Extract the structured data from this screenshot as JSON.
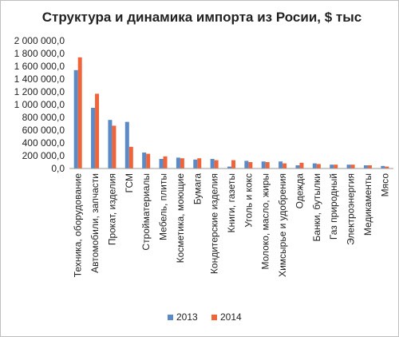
{
  "chart_data": {
    "type": "bar",
    "title": "Структура и динамика импорта из Росии, $ тыс",
    "categories": [
      "Техника, оборудование",
      "Автомобили, запчасти",
      "Прокат, изделия",
      "ГСМ",
      "Стройматериалы",
      "Мебель, плиты",
      "Косметика, моющие",
      "Бумага",
      "Кондитерские изделия",
      "Книги, газеты",
      "Уголь и кокс",
      "Молоко, масло, жиры",
      "Химсырье и удобрения",
      "Одежда",
      "Банки, бутылки",
      "Газ природный",
      "Электроэнергия",
      "Медикаменты",
      "Мясо"
    ],
    "series": [
      {
        "name": "2013",
        "color": "#5b8ac6",
        "values": [
          1540000,
          950000,
          760000,
          730000,
          250000,
          150000,
          170000,
          140000,
          150000,
          30000,
          120000,
          110000,
          110000,
          50000,
          80000,
          60000,
          60000,
          50000,
          40000
        ]
      },
      {
        "name": "2014",
        "color": "#f0643a",
        "values": [
          1740000,
          1170000,
          670000,
          340000,
          230000,
          190000,
          160000,
          160000,
          130000,
          130000,
          100000,
          100000,
          80000,
          90000,
          70000,
          60000,
          60000,
          50000,
          30000
        ]
      }
    ],
    "ylim": [
      0,
      2000000
    ],
    "yticks": [
      0,
      200000,
      400000,
      600000,
      800000,
      1000000,
      1200000,
      1400000,
      1600000,
      1800000,
      2000000
    ],
    "ytick_labels": [
      "0,0",
      "200 000,0",
      "400 000,0",
      "600 000,0",
      "800 000,0",
      "1 000 000,0",
      "1 200 000,0",
      "1 400 000,0",
      "1 600 000,0",
      "1 800 000,0",
      "2 000 000,0"
    ],
    "legend_position": "bottom",
    "grid": false
  }
}
